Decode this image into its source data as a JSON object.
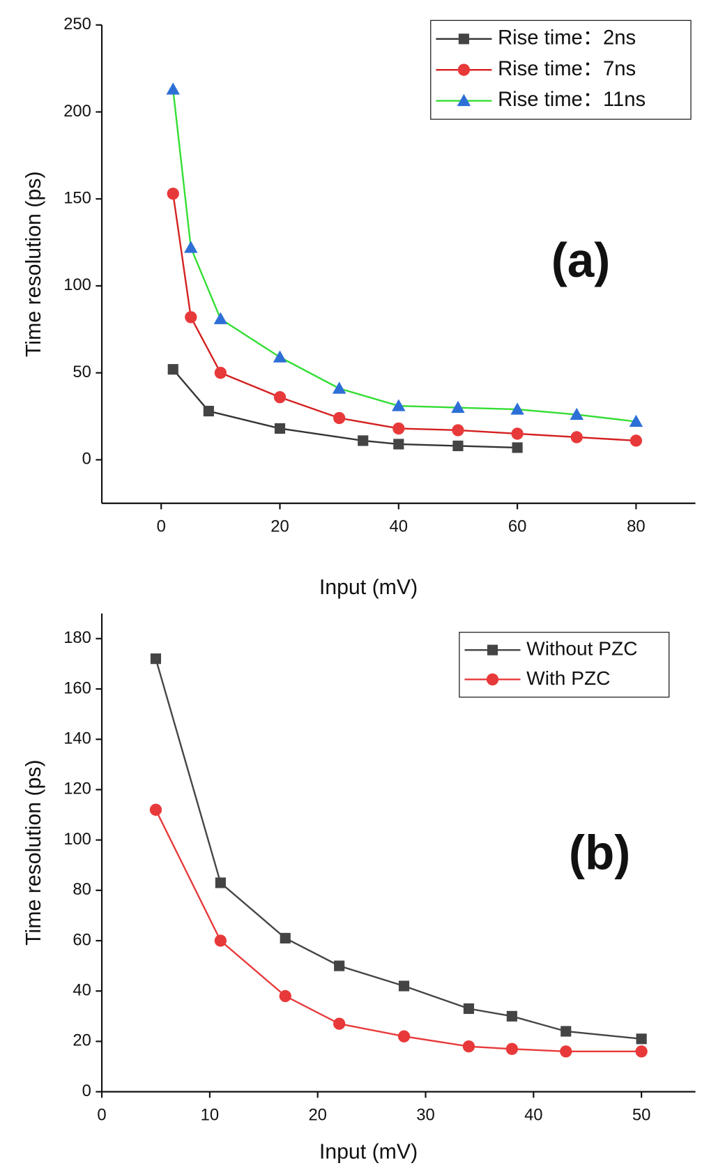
{
  "chart_data": [
    {
      "type": "line",
      "xlabel": "Input (mV)",
      "ylabel": "Time resolution (ps)",
      "annotation": "(a)",
      "xlim": [
        -10,
        90
      ],
      "xticks": [
        0,
        20,
        40,
        60,
        80
      ],
      "ylim": [
        -25,
        250
      ],
      "yticks": [
        0,
        50,
        100,
        150,
        200,
        250
      ],
      "legend": "upper right",
      "series": [
        {
          "name": "Rise time：2ns",
          "color": "#333333",
          "marker_color": "#444444",
          "marker": "square",
          "x": [
            2,
            8,
            20,
            34,
            40,
            50,
            60
          ],
          "values": [
            52,
            28,
            18,
            11,
            9,
            8,
            7
          ]
        },
        {
          "name": "Rise time：7ns",
          "color": "#d42020",
          "marker_color": "#e8393a",
          "marker": "circle",
          "x": [
            2,
            5,
            10,
            20,
            30,
            40,
            50,
            60,
            70,
            80
          ],
          "values": [
            153,
            82,
            50,
            36,
            24,
            18,
            17,
            15,
            13,
            11
          ]
        },
        {
          "name": "Rise time：11ns",
          "color": "#33dd33",
          "marker_color": "#2d6fd6",
          "marker": "triangle",
          "x": [
            2,
            5,
            10,
            20,
            30,
            40,
            50,
            60,
            70,
            80
          ],
          "values": [
            213,
            122,
            81,
            59,
            41,
            31,
            30,
            29,
            26,
            22
          ]
        }
      ]
    },
    {
      "type": "line",
      "xlabel": "Input (mV)",
      "ylabel": "Time resolution (ps)",
      "annotation": "(b)",
      "xlim": [
        0,
        55
      ],
      "xticks": [
        0,
        10,
        20,
        30,
        40,
        50
      ],
      "ylim": [
        0,
        190
      ],
      "yticks": [
        0,
        20,
        40,
        60,
        80,
        100,
        120,
        140,
        160,
        180
      ],
      "legend": "upper right",
      "series": [
        {
          "name": "Without PZC",
          "color": "#444444",
          "marker_color": "#444444",
          "marker": "square",
          "x": [
            5,
            11,
            17,
            22,
            28,
            34,
            38,
            43,
            50
          ],
          "values": [
            172,
            83,
            61,
            50,
            42,
            33,
            30,
            24,
            21
          ]
        },
        {
          "name": "With PZC",
          "color": "#e8393a",
          "marker_color": "#e8393a",
          "marker": "circle",
          "x": [
            5,
            11,
            17,
            22,
            28,
            34,
            38,
            43,
            50
          ],
          "values": [
            112,
            60,
            38,
            27,
            22,
            18,
            17,
            16,
            16
          ]
        }
      ]
    }
  ]
}
